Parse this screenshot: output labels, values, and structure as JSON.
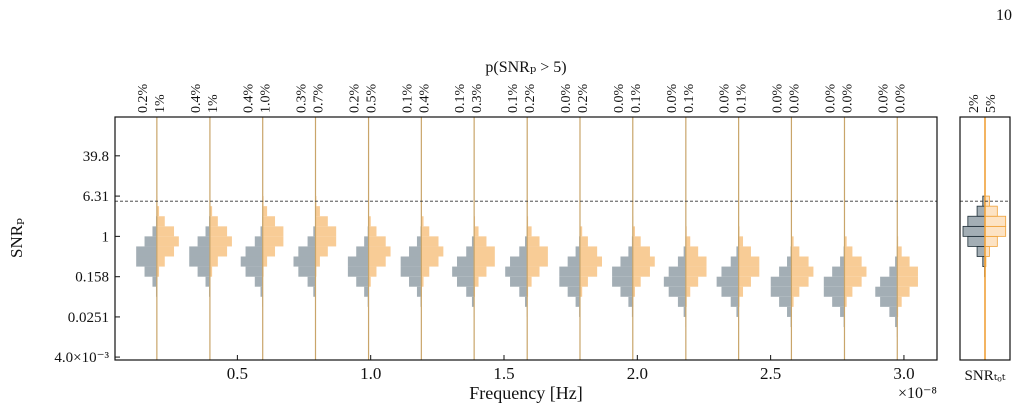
{
  "page_number": "10",
  "chart_data": [
    {
      "type": "split-histogram",
      "title": "p(SNRₚ > 5)",
      "x_label": "Frequency [Hz]",
      "x_offset": "×10⁻⁸",
      "y_label": "SNRₚ",
      "x": [
        0.198,
        0.397,
        0.595,
        0.793,
        0.992,
        1.19,
        1.388,
        1.587,
        1.785,
        1.983,
        2.182,
        2.38,
        2.578,
        2.777,
        2.975
      ],
      "xlim": [
        0.041,
        3.124
      ],
      "xticks": [
        0.5,
        {
          "value": 1.0,
          "label": "1.0"
        },
        1.5,
        {
          "value": 2.0,
          "label": "2.0"
        },
        2.5,
        {
          "value": 3.0,
          "label": "3.0"
        }
      ],
      "ylim": [
        0.0035,
        235
      ],
      "log_y": true,
      "yticks": [
        {
          "value": 0.004,
          "label": "4.0×10⁻³"
        },
        0.0251,
        0.158,
        1,
        6.31,
        39.8
      ],
      "threshold": 5,
      "bins": [
        0.01,
        0.0158,
        0.0251,
        0.0398,
        0.0631,
        0.1,
        0.158,
        0.251,
        0.398,
        0.631,
        1,
        1.58,
        2.51,
        3.98,
        6.31
      ],
      "series": [
        {
          "side": "left",
          "color": "#a3aeb5",
          "label_color": "#2e4a58",
          "fractions": [
            0.2,
            0.4,
            0.4,
            0.3,
            0.2,
            0.1,
            0.1,
            0.1,
            0.0,
            0.0,
            0.0,
            0.0,
            0.0,
            0.0,
            0.0
          ],
          "value_labels": [
            "0.2%",
            "0.4%",
            "0.4%",
            "0.3%",
            "0.2%",
            "0.1%",
            "0.1%",
            "0.1%",
            "0.0%",
            "0.0%",
            "0.0%",
            "0.0%",
            "0.0%",
            "0.0%",
            "0.0%"
          ],
          "values": [
            [
              0,
              0,
              0,
              0.01,
              0.04,
              0.2,
              0.56,
              0.94,
              0.94,
              0.56,
              0.2,
              0.04,
              0.01,
              0
            ],
            [
              0,
              0,
              0,
              0.01,
              0.04,
              0.2,
              0.56,
              0.94,
              0.94,
              0.56,
              0.2,
              0.04,
              0.01,
              0
            ],
            [
              0,
              0,
              0,
              0.02,
              0.1,
              0.36,
              0.78,
              1,
              0.78,
              0.36,
              0.1,
              0.02,
              0,
              0
            ],
            [
              0,
              0,
              0,
              0.02,
              0.1,
              0.36,
              0.78,
              1,
              0.78,
              0.36,
              0.1,
              0.02,
              0,
              0
            ],
            [
              0,
              0,
              0.01,
              0.04,
              0.2,
              0.56,
              0.94,
              0.94,
              0.56,
              0.2,
              0.04,
              0.01,
              0,
              0
            ],
            [
              0,
              0,
              0.01,
              0.04,
              0.2,
              0.56,
              0.94,
              0.94,
              0.56,
              0.2,
              0.04,
              0.01,
              0,
              0
            ],
            [
              0,
              0,
              0.02,
              0.1,
              0.36,
              0.78,
              1,
              0.78,
              0.36,
              0.1,
              0.02,
              0,
              0,
              0
            ],
            [
              0,
              0,
              0.02,
              0.1,
              0.36,
              0.78,
              1,
              0.78,
              0.36,
              0.1,
              0.02,
              0,
              0,
              0
            ],
            [
              0,
              0.01,
              0.04,
              0.2,
              0.56,
              0.94,
              0.94,
              0.56,
              0.2,
              0.04,
              0.01,
              0,
              0,
              0
            ],
            [
              0,
              0.01,
              0.04,
              0.2,
              0.56,
              0.94,
              0.94,
              0.56,
              0.2,
              0.04,
              0.01,
              0,
              0,
              0
            ],
            [
              0,
              0.02,
              0.1,
              0.36,
              0.78,
              1,
              0.78,
              0.36,
              0.1,
              0.02,
              0,
              0,
              0,
              0
            ],
            [
              0,
              0.02,
              0.1,
              0.36,
              0.78,
              1,
              0.78,
              0.36,
              0.1,
              0.02,
              0,
              0,
              0,
              0
            ],
            [
              0.01,
              0.04,
              0.2,
              0.56,
              0.94,
              0.94,
              0.56,
              0.2,
              0.04,
              0.01,
              0,
              0,
              0,
              0
            ],
            [
              0.01,
              0.04,
              0.2,
              0.56,
              0.94,
              0.94,
              0.56,
              0.2,
              0.04,
              0.01,
              0,
              0,
              0,
              0
            ],
            [
              0.02,
              0.1,
              0.36,
              0.78,
              1,
              0.78,
              0.36,
              0.1,
              0.02,
              0,
              0,
              0,
              0,
              0
            ]
          ]
        },
        {
          "side": "right",
          "color": "#f8cc96",
          "label_color": "#f0a23a",
          "fractions": [
            1,
            1,
            1.0,
            0.7,
            0.5,
            0.4,
            0.3,
            0.2,
            0.2,
            0.1,
            0.1,
            0.1,
            0.0,
            0.0,
            0.0
          ],
          "value_labels": [
            "1%",
            "1%",
            "1.0%",
            "0.7%",
            "0.5%",
            "0.4%",
            "0.3%",
            "0.2%",
            "0.2%",
            "0.1%",
            "0.1%",
            "0.1%",
            "0.0%",
            "0.0%",
            "0.0%"
          ],
          "values": [
            [
              0,
              0,
              0,
              0,
              0,
              0.02,
              0.1,
              0.36,
              0.78,
              1,
              0.78,
              0.36,
              0.1,
              0.02
            ],
            [
              0,
              0,
              0,
              0,
              0,
              0.02,
              0.1,
              0.36,
              0.78,
              1,
              0.78,
              0.36,
              0.1,
              0.02
            ],
            [
              0,
              0,
              0,
              0,
              0,
              0.01,
              0.04,
              0.2,
              0.56,
              0.94,
              0.94,
              0.56,
              0.2,
              0.04
            ],
            [
              0,
              0,
              0,
              0,
              0,
              0.01,
              0.04,
              0.2,
              0.56,
              0.94,
              0.94,
              0.56,
              0.2,
              0.04
            ],
            [
              0,
              0,
              0,
              0,
              0.02,
              0.1,
              0.36,
              0.78,
              1,
              0.78,
              0.36,
              0.1,
              0.02,
              0
            ],
            [
              0,
              0,
              0,
              0,
              0.02,
              0.1,
              0.36,
              0.78,
              1,
              0.78,
              0.36,
              0.1,
              0.02,
              0
            ],
            [
              0,
              0,
              0,
              0.01,
              0.04,
              0.2,
              0.56,
              0.94,
              0.94,
              0.56,
              0.2,
              0.04,
              0.01,
              0
            ],
            [
              0,
              0,
              0,
              0.01,
              0.04,
              0.2,
              0.56,
              0.94,
              0.94,
              0.56,
              0.2,
              0.04,
              0.01,
              0
            ],
            [
              0,
              0,
              0,
              0.02,
              0.1,
              0.36,
              0.78,
              1,
              0.78,
              0.36,
              0.1,
              0.02,
              0,
              0
            ],
            [
              0,
              0,
              0,
              0.02,
              0.1,
              0.36,
              0.78,
              1,
              0.78,
              0.36,
              0.1,
              0.02,
              0,
              0
            ],
            [
              0,
              0,
              0.01,
              0.04,
              0.2,
              0.56,
              0.94,
              0.94,
              0.56,
              0.2,
              0.04,
              0.01,
              0,
              0
            ],
            [
              0,
              0,
              0.01,
              0.04,
              0.2,
              0.56,
              0.94,
              0.94,
              0.56,
              0.2,
              0.04,
              0.01,
              0,
              0
            ],
            [
              0,
              0,
              0.02,
              0.1,
              0.36,
              0.78,
              1,
              0.78,
              0.36,
              0.1,
              0.02,
              0,
              0,
              0
            ],
            [
              0,
              0,
              0.02,
              0.1,
              0.36,
              0.78,
              1,
              0.78,
              0.36,
              0.1,
              0.02,
              0,
              0,
              0
            ],
            [
              0,
              0.01,
              0.04,
              0.2,
              0.56,
              0.94,
              0.94,
              0.56,
              0.2,
              0.04,
              0.01,
              0,
              0,
              0
            ]
          ]
        }
      ]
    },
    {
      "type": "total-histogram",
      "x_label": "SNRₜₒₜ",
      "ylim": [
        0.0035,
        235
      ],
      "log_y": true,
      "threshold": 5,
      "bins": [
        0.01,
        0.0158,
        0.0251,
        0.0398,
        0.0631,
        0.1,
        0.158,
        0.251,
        0.398,
        0.631,
        1,
        1.58,
        2.51,
        3.98,
        6.31
      ],
      "series": [
        {
          "side": "left",
          "color": "#a3aeb5",
          "edge_color": "#1f2f38",
          "label_color": "#2e4a58",
          "fraction": 2,
          "value_label": "2%",
          "values": [
            0,
            0,
            0,
            0,
            0,
            0,
            0.02,
            0.1,
            0.36,
            0.78,
            1,
            0.78,
            0.36,
            0.1
          ]
        },
        {
          "side": "right",
          "color": "#fde3c4",
          "edge_color": "#f0a23a",
          "label_color": "#f0a23a",
          "fraction": 5,
          "value_label": "5%",
          "values": [
            0,
            0,
            0,
            0,
            0,
            0,
            0.01,
            0.04,
            0.2,
            0.56,
            0.94,
            0.94,
            0.56,
            0.2
          ]
        }
      ]
    }
  ]
}
